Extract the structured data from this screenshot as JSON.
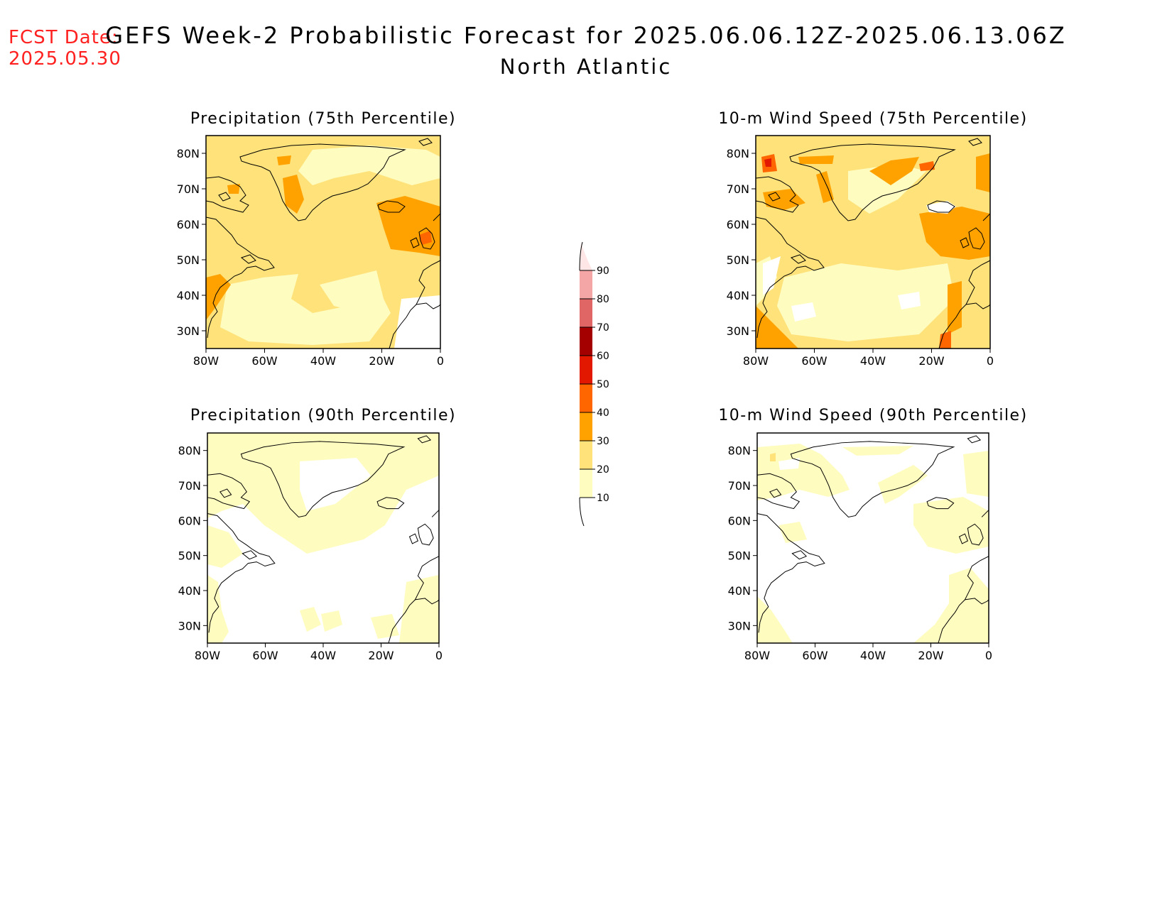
{
  "header": {
    "fcst_label": "FCST Date:",
    "fcst_date": "2025.05.30",
    "title": "GEFS Week-2 Probabilistic Forecast for 2025.06.06.12Z-2025.06.13.06Z",
    "subtitle": "North Atlantic"
  },
  "axes": {
    "lat_labels": [
      "80N",
      "70N",
      "60N",
      "50N",
      "40N",
      "30N"
    ],
    "lat_values": [
      80,
      70,
      60,
      50,
      40,
      30
    ],
    "lat_range": [
      25,
      85
    ],
    "lon_labels": [
      "80W",
      "60W",
      "40W",
      "20W",
      "0"
    ],
    "lon_values": [
      -80,
      -60,
      -40,
      -20,
      0
    ],
    "lon_range": [
      -80,
      0
    ]
  },
  "panels": [
    {
      "id": "precip-75",
      "title": "Precipitation (75th Percentile)"
    },
    {
      "id": "wind-75",
      "title": "10-m Wind Speed (75th Percentile)"
    },
    {
      "id": "precip-90",
      "title": "Precipitation (90th Percentile)"
    },
    {
      "id": "wind-90",
      "title": "10-m Wind Speed (90th Percentile)"
    }
  ],
  "colorbar": {
    "levels": [
      "10",
      "20",
      "30",
      "40",
      "50",
      "60",
      "70",
      "80",
      "90"
    ],
    "colors": [
      "#fffcc0",
      "#ffe27a",
      "#ffa200",
      "#ff6600",
      "#e21800",
      "#a50000",
      "#e06666",
      "#f4a5a5",
      "#ffe6e6"
    ]
  }
}
